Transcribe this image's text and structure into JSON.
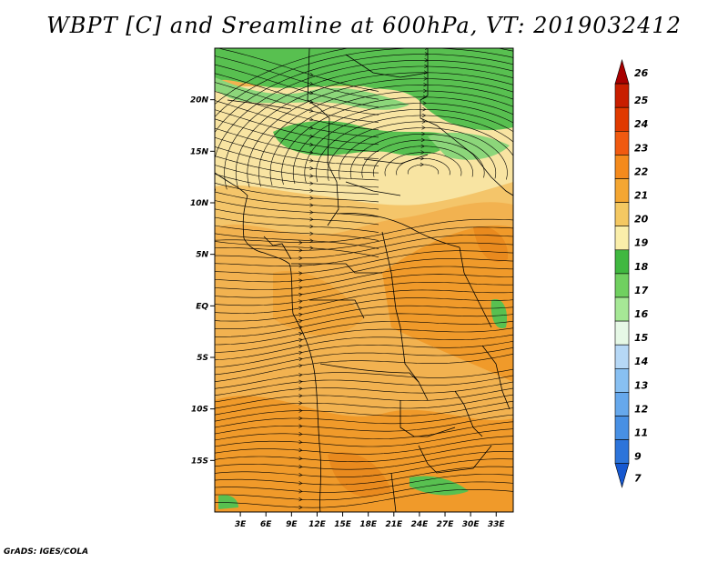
{
  "title": "WBPT [C] and Sreamline at 600hPa, VT: 2019032412",
  "footer": "GrADS: IGES/COLA",
  "map": {
    "lon_range": [
      0,
      35
    ],
    "lat_range": [
      -20,
      25
    ],
    "lon_ticks": [
      "3E",
      "6E",
      "9E",
      "12E",
      "15E",
      "18E",
      "21E",
      "24E",
      "27E",
      "30E",
      "33E"
    ],
    "lat_ticks": [
      "20N",
      "15N",
      "10N",
      "5N",
      "EQ",
      "5S",
      "10S",
      "15S"
    ],
    "field_zones": [
      {
        "region": "north-band",
        "value_c": 17
      },
      {
        "region": "sahel-north",
        "value_c": 19
      },
      {
        "region": "sahel",
        "value_c": 20
      },
      {
        "region": "equatorial-west",
        "value_c": 21
      },
      {
        "region": "east-africa",
        "value_c": 22
      },
      {
        "region": "south",
        "value_c": 22
      }
    ]
  },
  "colorbar": {
    "levels": [
      "26",
      "25",
      "24",
      "23",
      "22",
      "21",
      "20",
      "19",
      "18",
      "17",
      "16",
      "15",
      "14",
      "13",
      "12",
      "11",
      "9",
      "7"
    ],
    "colors": [
      "#a80000",
      "#c81e00",
      "#e03a00",
      "#f05a10",
      "#f48a1c",
      "#f4a632",
      "#f4c862",
      "#faeeaa",
      "#40b840",
      "#70d060",
      "#a6e896",
      "#e6f8e6",
      "#b6d8f6",
      "#88c0f2",
      "#66a8ec",
      "#4890e4",
      "#2c74da",
      "#1658d0"
    ]
  }
}
